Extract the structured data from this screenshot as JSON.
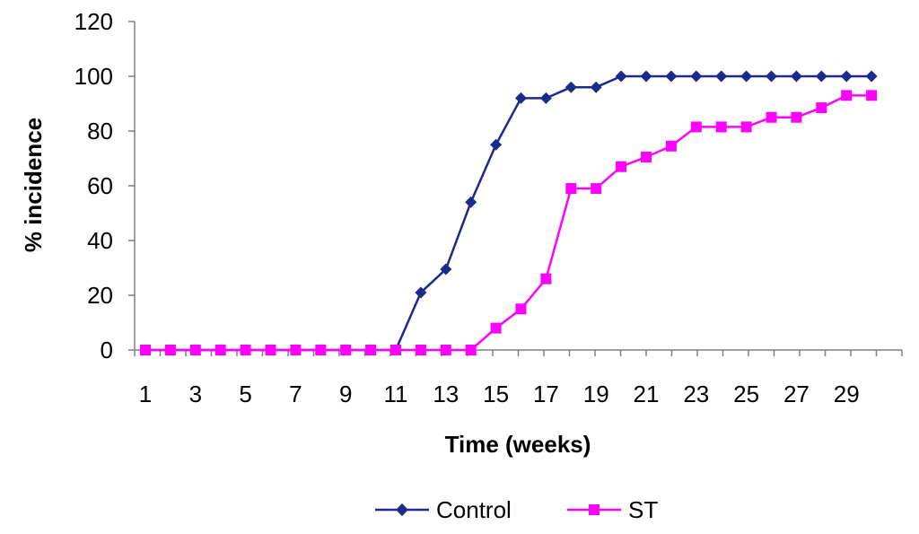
{
  "chart_data": {
    "type": "line",
    "xlabel": "Time (weeks)",
    "ylabel": "% incidence",
    "ylim": [
      0,
      120
    ],
    "xlim": [
      1,
      30
    ],
    "y_ticks": [
      0,
      20,
      40,
      60,
      80,
      100,
      120
    ],
    "x_tick_labels": [
      1,
      3,
      5,
      7,
      9,
      11,
      13,
      15,
      17,
      19,
      21,
      23,
      25,
      27,
      29
    ],
    "grid": false,
    "legend": "bottom",
    "x": [
      1,
      2,
      3,
      4,
      5,
      6,
      7,
      8,
      9,
      10,
      11,
      12,
      13,
      14,
      15,
      16,
      17,
      18,
      19,
      20,
      21,
      22,
      23,
      24,
      25,
      26,
      27,
      28,
      29,
      30
    ],
    "series": [
      {
        "name": "Control",
        "color": "#1c2a8a",
        "marker": "diamond",
        "values": [
          0,
          0,
          0,
          0,
          0,
          0,
          0,
          0,
          0,
          0,
          0,
          21,
          29.5,
          54,
          75,
          92,
          92,
          96,
          96,
          100,
          100,
          100,
          100,
          100,
          100,
          100,
          100,
          100,
          100,
          100
        ]
      },
      {
        "name": "ST",
        "color": "#ff00ff",
        "marker": "square",
        "values": [
          0,
          0,
          0,
          0,
          0,
          0,
          0,
          0,
          0,
          0,
          0,
          0,
          0,
          0,
          8,
          15,
          26,
          59,
          59,
          67,
          70.5,
          74.5,
          81.5,
          81.5,
          81.5,
          85,
          85,
          88.5,
          93,
          93
        ]
      }
    ]
  }
}
